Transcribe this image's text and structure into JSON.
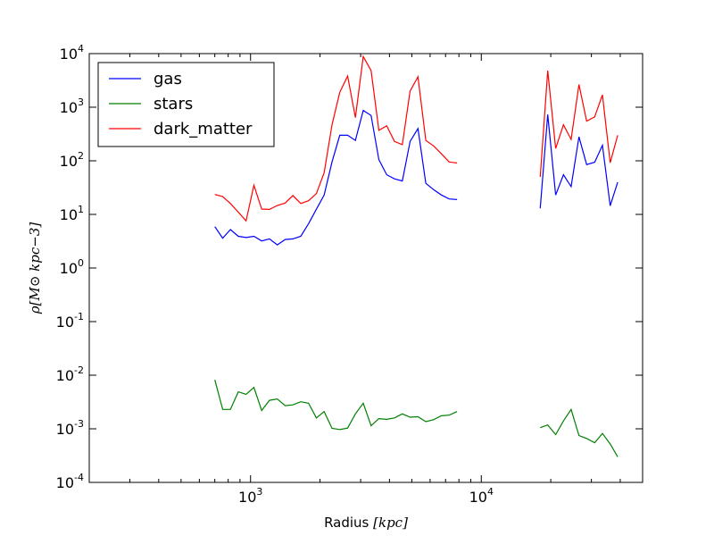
{
  "chart_data": {
    "type": "line",
    "xlabel_text": "Radius",
    "xlabel_unit": "[kpc]",
    "ylabel": "ρ[M⊙ kpc−3]",
    "xscale": "log",
    "yscale": "log",
    "xlim": [
      200,
      50000
    ],
    "ylim": [
      0.0001,
      10000
    ],
    "x_ticks": [
      {
        "base": "10",
        "exp": "3",
        "value": 1000
      },
      {
        "base": "10",
        "exp": "4",
        "value": 10000
      }
    ],
    "y_ticks": [
      {
        "base": "10",
        "exp": "-4",
        "value": 0.0001
      },
      {
        "base": "10",
        "exp": "-3",
        "value": 0.001
      },
      {
        "base": "10",
        "exp": "-2",
        "value": 0.01
      },
      {
        "base": "10",
        "exp": "-1",
        "value": 0.1
      },
      {
        "base": "10",
        "exp": "0",
        "value": 1
      },
      {
        "base": "10",
        "exp": "1",
        "value": 10
      },
      {
        "base": "10",
        "exp": "2",
        "value": 100
      },
      {
        "base": "10",
        "exp": "3",
        "value": 1000
      },
      {
        "base": "10",
        "exp": "4",
        "value": 10000
      }
    ],
    "grid": false,
    "legend_position": "top-left",
    "series": [
      {
        "name": "gas",
        "color": "#0000ff",
        "segments": [
          [
            [
              700,
              5.9
            ],
            [
              757,
              3.6
            ],
            [
              818,
              5.2
            ],
            [
              885,
              3.9
            ],
            [
              956,
              3.7
            ],
            [
              1034,
              3.9
            ],
            [
              1118,
              3.2
            ],
            [
              1208,
              3.5
            ],
            [
              1306,
              2.7
            ],
            [
              1412,
              3.4
            ],
            [
              1526,
              3.5
            ],
            [
              1650,
              3.9
            ],
            [
              1784,
              6.7
            ],
            [
              1929,
              12.5
            ],
            [
              2085,
              23
            ],
            [
              2254,
              95
            ],
            [
              2437,
              300
            ],
            [
              2635,
              300
            ],
            [
              2848,
              240
            ],
            [
              3079,
              870
            ],
            [
              3329,
              700
            ],
            [
              3599,
              105
            ],
            [
              3891,
              55
            ],
            [
              4206,
              46
            ],
            [
              4547,
              42
            ],
            [
              4916,
              230
            ],
            [
              5315,
              400
            ],
            [
              5746,
              38
            ],
            [
              6212,
              29
            ],
            [
              6715,
              23
            ],
            [
              7260,
              19.4
            ],
            [
              7849,
              18.9
            ]
          ],
          [
            [
              18000,
              13
            ],
            [
              19400,
              730
            ],
            [
              21000,
              23
            ],
            [
              22700,
              55
            ],
            [
              24500,
              33
            ],
            [
              26500,
              280
            ],
            [
              28600,
              85
            ],
            [
              31000,
              94
            ],
            [
              33500,
              195
            ],
            [
              36200,
              14.5
            ],
            [
              39000,
              40
            ]
          ]
        ]
      },
      {
        "name": "stars",
        "color": "#008000",
        "segments": [
          [
            [
              700,
              0.0082
            ],
            [
              757,
              0.0023
            ],
            [
              818,
              0.0023
            ],
            [
              885,
              0.0049
            ],
            [
              956,
              0.0044
            ],
            [
              1034,
              0.0059
            ],
            [
              1118,
              0.0022
            ],
            [
              1208,
              0.0034
            ],
            [
              1306,
              0.0036
            ],
            [
              1412,
              0.0027
            ],
            [
              1526,
              0.0028
            ],
            [
              1650,
              0.0032
            ],
            [
              1784,
              0.003
            ],
            [
              1929,
              0.0016
            ],
            [
              2085,
              0.0021
            ],
            [
              2254,
              0.00102
            ],
            [
              2437,
              0.00097
            ],
            [
              2635,
              0.00103
            ],
            [
              2848,
              0.0019
            ],
            [
              3079,
              0.003
            ],
            [
              3329,
              0.00114
            ],
            [
              3599,
              0.00155
            ],
            [
              3891,
              0.0015
            ],
            [
              4206,
              0.0016
            ],
            [
              4547,
              0.0019
            ],
            [
              4916,
              0.00165
            ],
            [
              5315,
              0.00168
            ],
            [
              5746,
              0.00136
            ],
            [
              6212,
              0.00148
            ],
            [
              6715,
              0.00175
            ],
            [
              7260,
              0.0018
            ],
            [
              7849,
              0.0021
            ]
          ],
          [
            [
              18000,
              0.00105
            ],
            [
              19400,
              0.00118
            ],
            [
              21000,
              0.00078
            ],
            [
              22700,
              0.0014
            ],
            [
              24500,
              0.0023
            ],
            [
              26500,
              0.00075
            ],
            [
              28600,
              0.00066
            ],
            [
              31000,
              0.00055
            ],
            [
              33500,
              0.00082
            ],
            [
              36200,
              0.00052
            ],
            [
              39000,
              0.0003
            ]
          ]
        ]
      },
      {
        "name": "dark_matter",
        "color": "#ff0000",
        "segments": [
          [
            [
              700,
              23.5
            ],
            [
              757,
              21.5
            ],
            [
              818,
              16
            ],
            [
              885,
              11
            ],
            [
              956,
              7.6
            ],
            [
              1034,
              35
            ],
            [
              1118,
              12.6
            ],
            [
              1208,
              12.4
            ],
            [
              1306,
              14.7
            ],
            [
              1412,
              16.3
            ],
            [
              1526,
              22.5
            ],
            [
              1650,
              16
            ],
            [
              1784,
              18
            ],
            [
              1929,
              24.5
            ],
            [
              2085,
              60
            ],
            [
              2254,
              470
            ],
            [
              2437,
              1900
            ],
            [
              2635,
              3800
            ],
            [
              2848,
              640
            ],
            [
              3079,
              8800
            ],
            [
              3329,
              4800
            ],
            [
              3599,
              370
            ],
            [
              3891,
              450
            ],
            [
              4206,
              230
            ],
            [
              4547,
              200
            ],
            [
              4916,
              2000
            ],
            [
              5315,
              3700
            ],
            [
              5746,
              240
            ],
            [
              6212,
              190
            ],
            [
              6715,
              135
            ],
            [
              7260,
              95
            ],
            [
              7849,
              91
            ]
          ],
          [
            [
              18000,
              50
            ],
            [
              19400,
              4800
            ],
            [
              21000,
              170
            ],
            [
              22700,
              470
            ],
            [
              24500,
              250
            ],
            [
              26500,
              2650
            ],
            [
              28600,
              550
            ],
            [
              31000,
              660
            ],
            [
              33500,
              1700
            ],
            [
              36200,
              92
            ],
            [
              39000,
              300
            ]
          ]
        ]
      }
    ]
  }
}
